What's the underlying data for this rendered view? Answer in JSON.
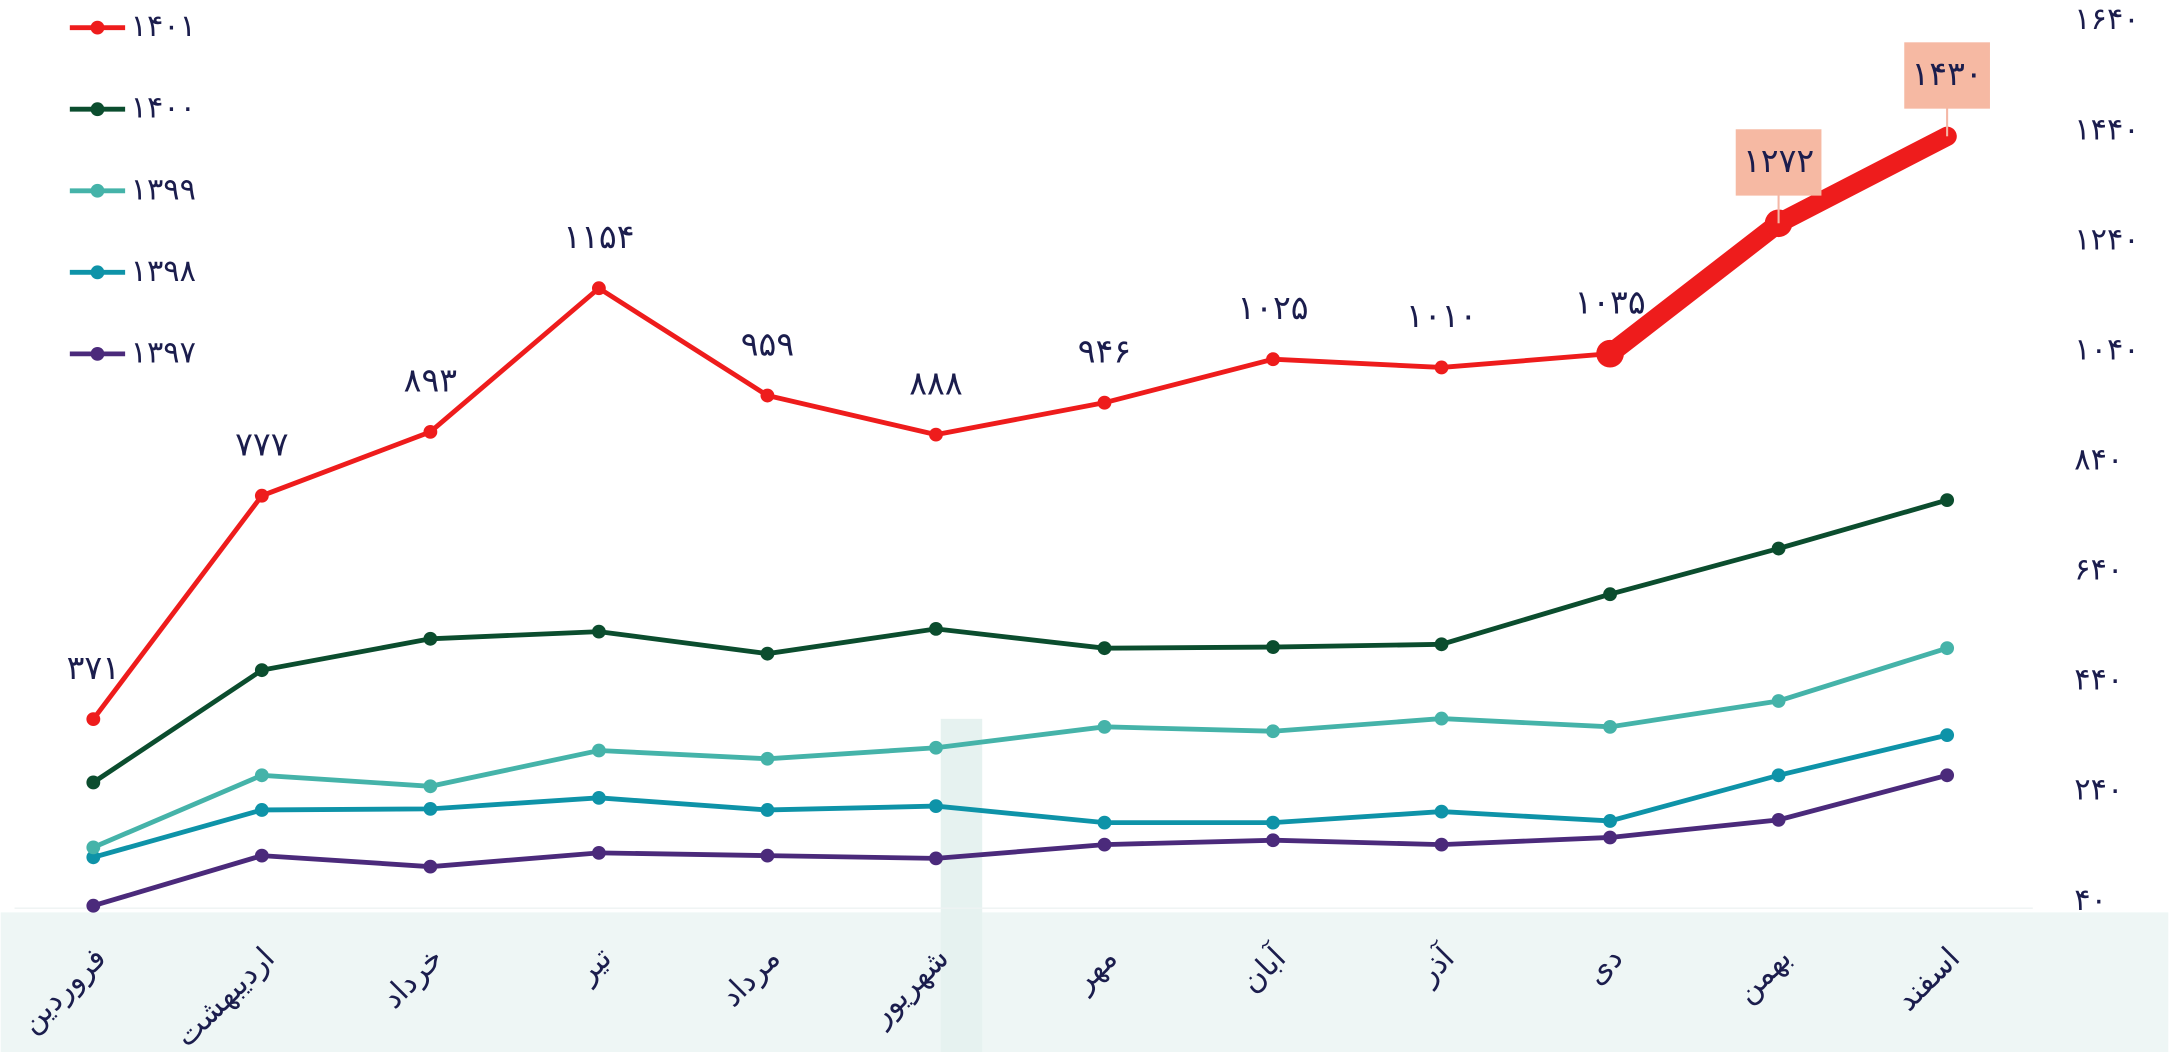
{
  "chart_data": {
    "type": "line",
    "categories": [
      "فروردین",
      "اردیبهشت",
      "خرداد",
      "تیر",
      "مرداد",
      "شهریور",
      "مهر",
      "آبان",
      "آذر",
      "دی",
      "بهمن",
      "اسفند"
    ],
    "series": [
      {
        "name": "۱۴۰۱",
        "color": "#ee1c1c",
        "values": [
          371,
          777,
          893,
          1154,
          959,
          888,
          946,
          1025,
          1010,
          1035,
          1272,
          1430
        ],
        "value_labels": [
          "۳۷۱",
          "۷۷۷",
          "۸۹۳",
          "۱۱۵۴",
          "۹۵۹",
          "۸۸۸",
          "۹۴۶",
          "۱۰۲۵",
          "۱۰۱۰",
          "۱۰۳۵",
          "۱۲۷۲",
          "۱۴۳۰"
        ],
        "highlight": [
          10,
          11
        ]
      },
      {
        "name": "۱۴۰۰",
        "color": "#0b4d2e",
        "values": [
          256,
          460,
          517,
          530,
          490,
          535,
          500,
          502,
          507,
          598,
          681,
          769
        ]
      },
      {
        "name": "۱۳۹۹",
        "color": "#45b3a9",
        "values": [
          138,
          269,
          249,
          314,
          299,
          319,
          357,
          349,
          372,
          357,
          404,
          500
        ]
      },
      {
        "name": "۱۳۹۸",
        "color": "#0e93a8",
        "values": [
          120,
          206,
          208,
          228,
          206,
          213,
          183,
          183,
          203,
          186,
          269,
          342
        ]
      },
      {
        "name": "۱۳۹۷",
        "color": "#4b2a7b",
        "values": [
          32,
          123,
          103,
          128,
          123,
          118,
          143,
          151,
          143,
          156,
          188,
          269
        ]
      }
    ],
    "ylim": [
      40,
      1640
    ],
    "yticks": [
      {
        "value": 40,
        "label": "۴۰"
      },
      {
        "value": 240,
        "label": "۲۴۰"
      },
      {
        "value": 440,
        "label": "۴۴۰"
      },
      {
        "value": 640,
        "label": "۶۴۰"
      },
      {
        "value": 840,
        "label": "۸۴۰"
      },
      {
        "value": 1040,
        "label": "۱۰۴۰"
      },
      {
        "value": 1240,
        "label": "۱۲۴۰"
      },
      {
        "value": 1440,
        "label": "۱۴۴۰"
      },
      {
        "value": 1640,
        "label": "۱۶۴۰"
      }
    ],
    "legend": "top-left"
  }
}
